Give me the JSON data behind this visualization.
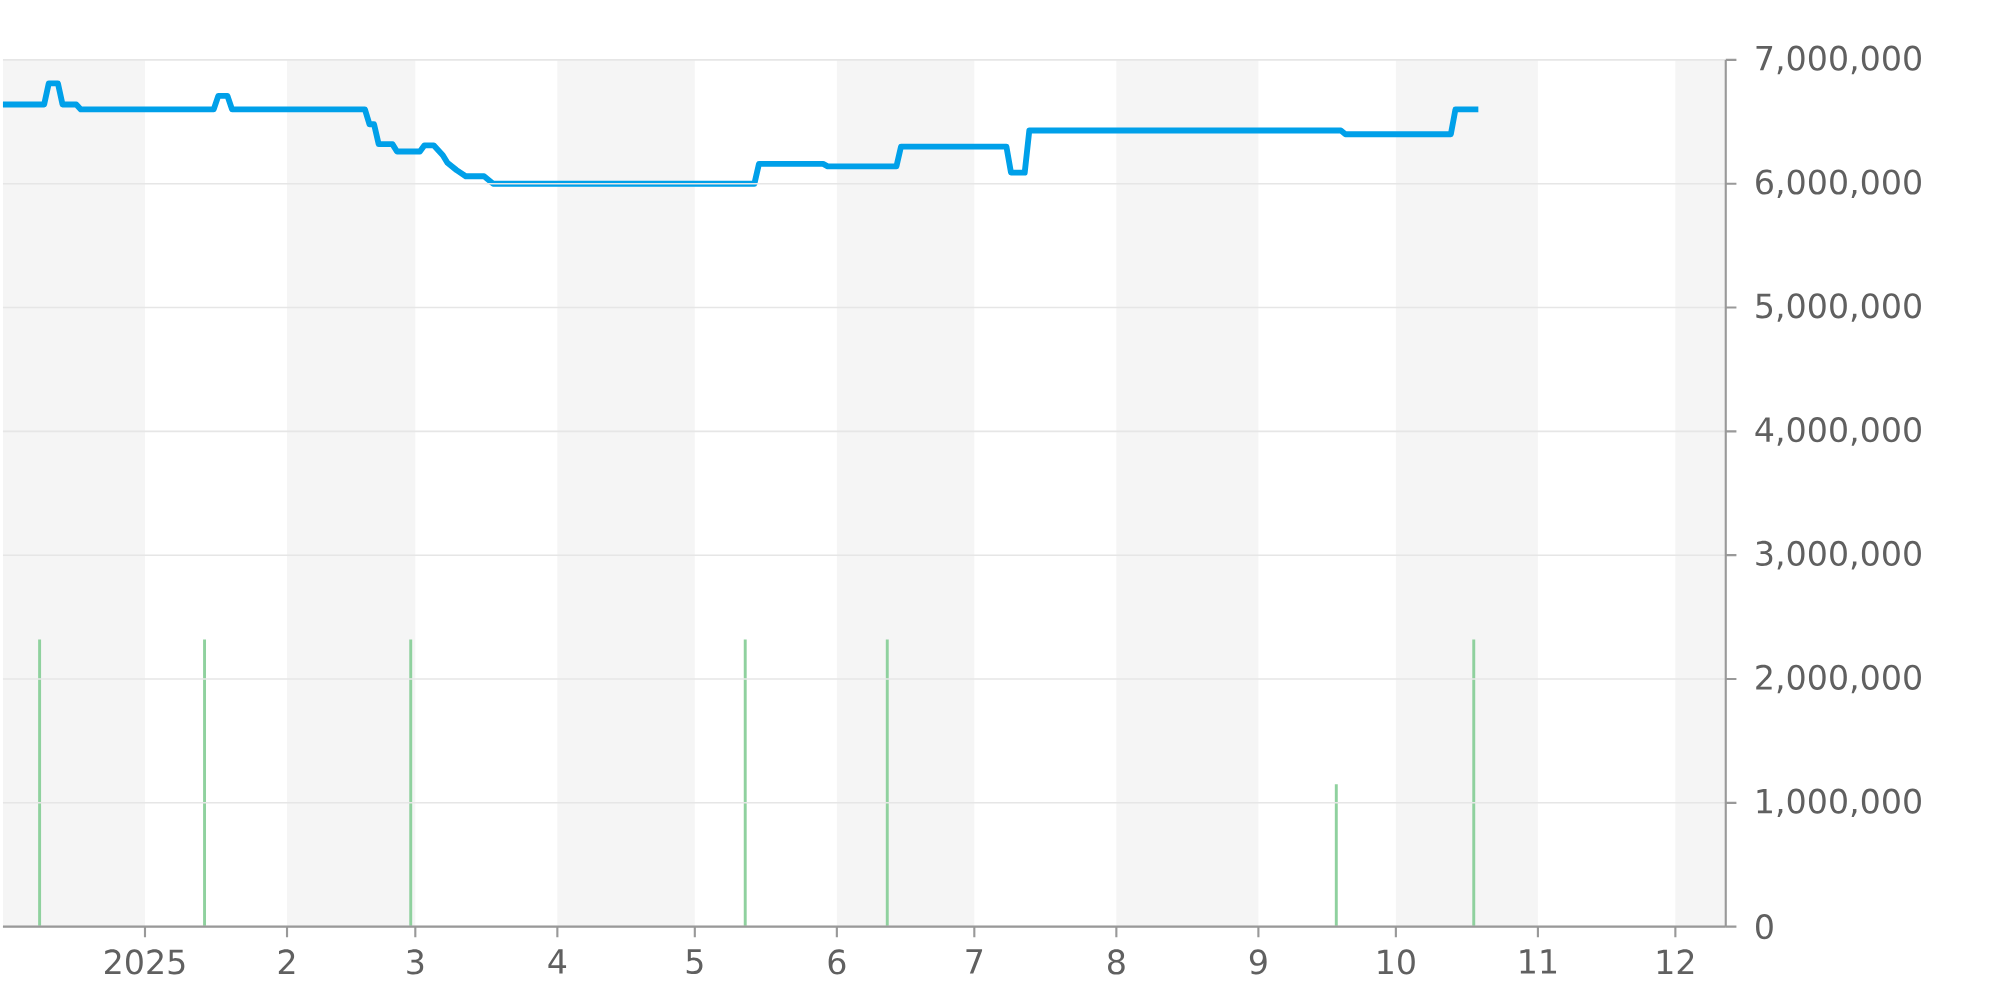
{
  "chart_data": {
    "type": "line",
    "xlim": [
      "2024-12-01",
      "2025-12-12"
    ],
    "xticks": [
      {
        "value": "2025-01-01",
        "label": "2025"
      },
      {
        "value": "2025-02-01",
        "label": "2"
      },
      {
        "value": "2025-03-01",
        "label": "3"
      },
      {
        "value": "2025-04-01",
        "label": "4"
      },
      {
        "value": "2025-05-01",
        "label": "5"
      },
      {
        "value": "2025-06-01",
        "label": "6"
      },
      {
        "value": "2025-07-01",
        "label": "7"
      },
      {
        "value": "2025-08-01",
        "label": "8"
      },
      {
        "value": "2025-09-01",
        "label": "9"
      },
      {
        "value": "2025-10-01",
        "label": "10"
      },
      {
        "value": "2025-11-01",
        "label": "11"
      },
      {
        "value": "2025-12-01",
        "label": "12"
      }
    ],
    "ylim": [
      0,
      7000000
    ],
    "yticks": [
      {
        "value": 0,
        "label": "0"
      },
      {
        "value": 1000000,
        "label": "1,000,000"
      },
      {
        "value": 2000000,
        "label": "2,000,000"
      },
      {
        "value": 3000000,
        "label": "3,000,000"
      },
      {
        "value": 4000000,
        "label": "4,000,000"
      },
      {
        "value": 5000000,
        "label": "5,000,000"
      },
      {
        "value": 6000000,
        "label": "6,000,000"
      },
      {
        "value": 7000000,
        "label": "7,000,000"
      }
    ],
    "grid": "y",
    "bands": [
      {
        "axis": "x",
        "from": "2024-12-01",
        "to": "2025-01-01",
        "color": "#f5f5f5"
      },
      {
        "axis": "x",
        "from": "2025-02-01",
        "to": "2025-03-01",
        "color": "#f5f5f5"
      },
      {
        "axis": "x",
        "from": "2025-04-01",
        "to": "2025-05-01",
        "color": "#f5f5f5"
      },
      {
        "axis": "x",
        "from": "2025-06-01",
        "to": "2025-07-01",
        "color": "#f5f5f5"
      },
      {
        "axis": "x",
        "from": "2025-08-01",
        "to": "2025-09-01",
        "color": "#f5f5f5"
      },
      {
        "axis": "x",
        "from": "2025-10-01",
        "to": "2025-11-01",
        "color": "#f5f5f5"
      },
      {
        "axis": "x",
        "from": "2025-12-01",
        "to": "2025-12-12",
        "color": "#f5f5f5"
      }
    ],
    "series": [
      {
        "type": "bar",
        "color": "#8fd19e",
        "x": [
          "2024-12-09",
          "2025-01-14",
          "2025-02-28",
          "2025-05-12",
          "2025-06-12",
          "2025-09-18",
          "2025-10-18"
        ],
        "values": [
          2320000,
          2320000,
          2320000,
          2320000,
          2320000,
          1150000,
          2320000
        ]
      },
      {
        "color": "#00a0e9",
        "x": [
          "2024-12-01",
          "2024-12-10",
          "2024-12-11",
          "2024-12-13",
          "2024-12-14",
          "2024-12-17",
          "2024-12-18",
          "2025-01-16",
          "2025-01-17",
          "2025-01-19",
          "2025-01-20",
          "2025-02-18",
          "2025-02-19",
          "2025-02-20",
          "2025-02-21",
          "2025-02-24",
          "2025-02-25",
          "2025-03-02",
          "2025-03-03",
          "2025-03-05",
          "2025-03-07",
          "2025-03-08",
          "2025-03-10",
          "2025-03-12",
          "2025-03-16",
          "2025-03-18",
          "2025-05-14",
          "2025-05-15",
          "2025-05-29",
          "2025-05-30",
          "2025-06-14",
          "2025-06-15",
          "2025-07-08",
          "2025-07-09",
          "2025-07-12",
          "2025-07-13",
          "2025-09-19",
          "2025-09-20",
          "2025-10-13",
          "2025-10-14",
          "2025-10-19"
        ],
        "values": [
          6640000,
          6640000,
          6810000,
          6810000,
          6640000,
          6640000,
          6600000,
          6600000,
          6710000,
          6710000,
          6600000,
          6600000,
          6480000,
          6480000,
          6320000,
          6320000,
          6260000,
          6260000,
          6310000,
          6310000,
          6230000,
          6170000,
          6110000,
          6060000,
          6060000,
          6000000,
          6000000,
          6160000,
          6160000,
          6140000,
          6140000,
          6300000,
          6300000,
          6090000,
          6090000,
          6430000,
          6430000,
          6400000,
          6400000,
          6600000,
          6600000
        ]
      }
    ]
  }
}
